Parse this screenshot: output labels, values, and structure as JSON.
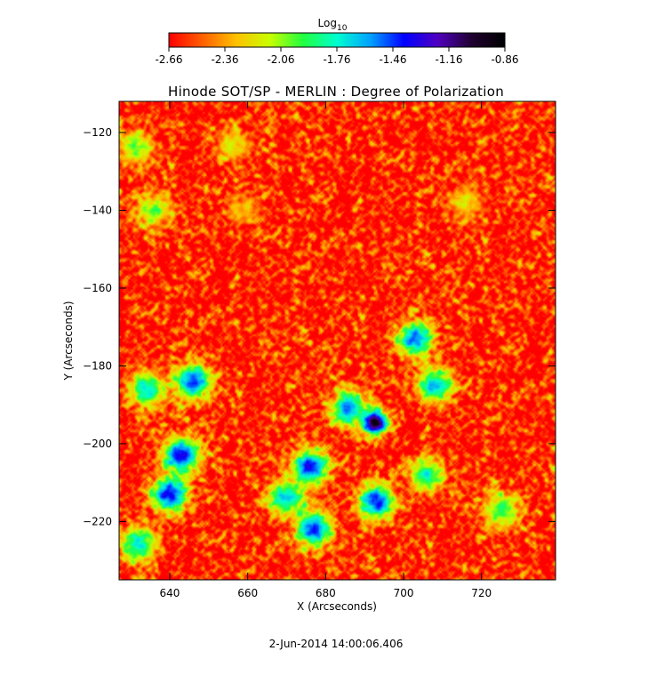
{
  "chart_data": {
    "type": "heatmap",
    "title": "Hinode SOT/SP - MERLIN : Degree of Polarization",
    "xlabel": "X (Arcseconds)",
    "ylabel": "Y (Arcseconds)",
    "xlim": [
      627,
      739
    ],
    "ylim": [
      -235,
      -112
    ],
    "x_ticks": [
      640,
      660,
      680,
      700,
      720
    ],
    "y_ticks": [
      -120,
      -140,
      -160,
      -180,
      -200,
      -220
    ],
    "colorbar": {
      "label": "Log",
      "label_subscript": "10",
      "range": [
        -2.66,
        -0.86
      ],
      "ticks": [
        "-2.66",
        "-2.36",
        "-2.06",
        "-1.76",
        "-1.46",
        "-1.16",
        "-0.86"
      ],
      "colormap": [
        "#ff0000",
        "#ff6000",
        "#ffc000",
        "#c8ff00",
        "#20ff40",
        "#00ffd0",
        "#00a0ff",
        "#0000ff",
        "#5000c0",
        "#200030",
        "#000000"
      ]
    },
    "background_level": -2.6,
    "features": [
      {
        "x": 692.5,
        "y": -194.5,
        "peak": -0.86,
        "note": "dark core"
      },
      {
        "x": 686,
        "y": -191,
        "peak": -1.5
      },
      {
        "x": 676,
        "y": -206,
        "peak": -1.35
      },
      {
        "x": 677,
        "y": -222,
        "peak": -1.4
      },
      {
        "x": 670,
        "y": -214,
        "peak": -1.6
      },
      {
        "x": 693,
        "y": -215,
        "peak": -1.4
      },
      {
        "x": 703,
        "y": -173,
        "peak": -1.5
      },
      {
        "x": 708,
        "y": -185,
        "peak": -1.6
      },
      {
        "x": 706,
        "y": -208,
        "peak": -1.8
      },
      {
        "x": 646,
        "y": -184,
        "peak": -1.4
      },
      {
        "x": 643,
        "y": -203,
        "peak": -1.35
      },
      {
        "x": 640,
        "y": -213,
        "peak": -1.35
      },
      {
        "x": 634,
        "y": -186,
        "peak": -1.7
      },
      {
        "x": 632,
        "y": -226,
        "peak": -1.7
      },
      {
        "x": 631,
        "y": -124,
        "peak": -2.0
      },
      {
        "x": 636,
        "y": -140,
        "peak": -2.0
      },
      {
        "x": 656,
        "y": -123,
        "peak": -2.2
      },
      {
        "x": 659,
        "y": -140,
        "peak": -2.3
      },
      {
        "x": 716,
        "y": -138,
        "peak": -2.2
      },
      {
        "x": 725,
        "y": -217,
        "peak": -1.9
      }
    ]
  },
  "footer": {
    "timestamp": "2-Jun-2014 14:00:06.406"
  }
}
